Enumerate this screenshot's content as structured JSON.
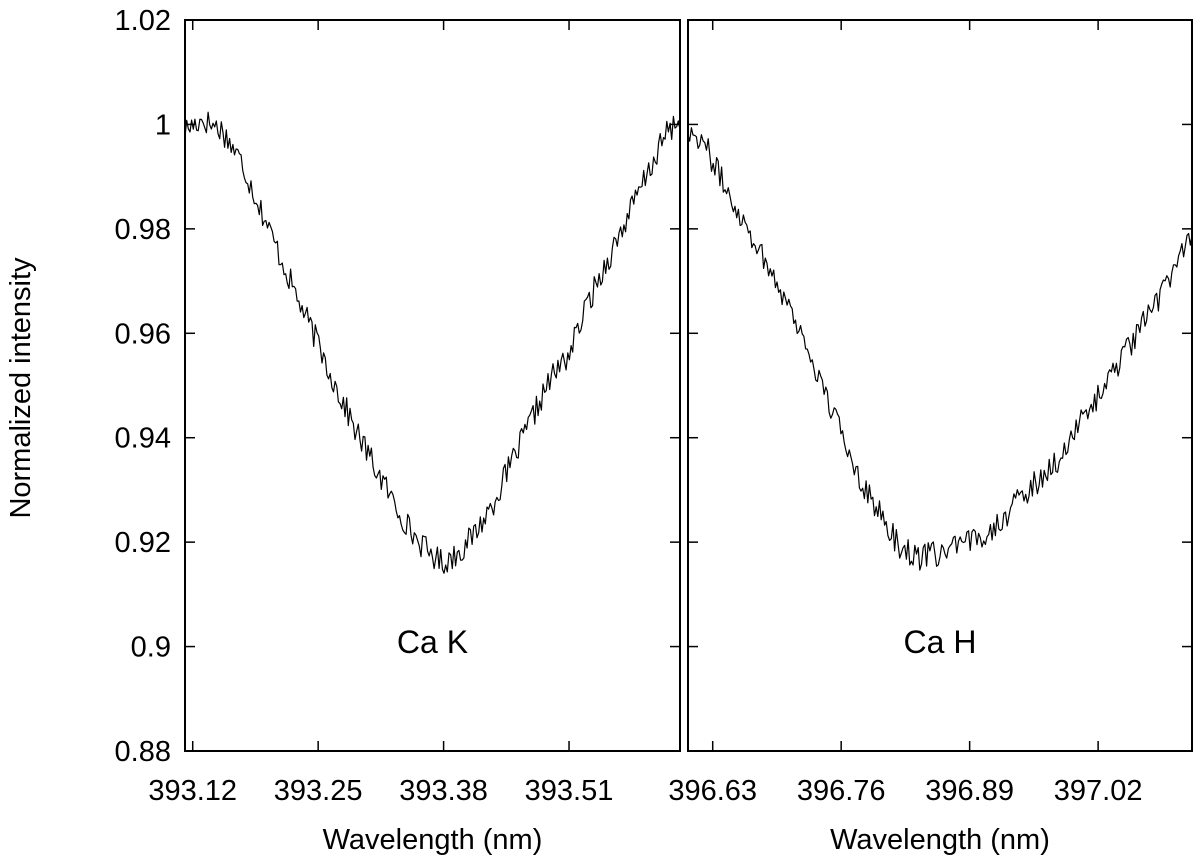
{
  "chart_data": {
    "type": "line",
    "ylabel": "Normalized intensity",
    "ylim": [
      0.88,
      1.02
    ],
    "yticks": [
      "0.88",
      "0.9",
      "0.92",
      "0.94",
      "0.96",
      "0.98",
      "1",
      "1.02"
    ],
    "y_tick_values": [
      0.88,
      0.9,
      0.92,
      0.94,
      0.96,
      0.98,
      1.0,
      1.02
    ],
    "grid": false,
    "line_color": "#000000",
    "panels": [
      {
        "xlabel": "Wavelength (nm)",
        "annotation": "Ca K",
        "xlim": [
          393.112,
          393.625
        ],
        "xticks": [
          "393.12",
          "393.25",
          "393.38",
          "393.51"
        ],
        "x_tick_values": [
          393.12,
          393.25,
          393.38,
          393.51
        ],
        "x": [
          393.112,
          393.13,
          393.15,
          393.17,
          393.19,
          393.21,
          393.23,
          393.25,
          393.27,
          393.29,
          393.31,
          393.33,
          393.35,
          393.365,
          393.38,
          393.395,
          393.41,
          393.43,
          393.45,
          393.47,
          393.49,
          393.51,
          393.53,
          393.55,
          393.57,
          393.59,
          393.61,
          393.625
        ],
        "y": [
          0.999,
          1.001,
          0.999,
          0.993,
          0.984,
          0.975,
          0.966,
          0.958,
          0.949,
          0.941,
          0.934,
          0.927,
          0.921,
          0.918,
          0.916,
          0.918,
          0.921,
          0.927,
          0.935,
          0.943,
          0.951,
          0.956,
          0.966,
          0.974,
          0.982,
          0.99,
          0.998,
          1.001
        ]
      },
      {
        "xlabel": "Wavelength (nm)",
        "annotation": "Ca H",
        "xlim": [
          396.605,
          397.115
        ],
        "xticks": [
          "396.63",
          "396.76",
          "396.89",
          "397.02"
        ],
        "x_tick_values": [
          396.63,
          396.76,
          396.89,
          397.02
        ],
        "x": [
          396.605,
          396.62,
          396.64,
          396.66,
          396.68,
          396.7,
          396.72,
          396.74,
          396.76,
          396.78,
          396.8,
          396.82,
          396.84,
          396.86,
          396.88,
          396.9,
          396.92,
          396.94,
          396.96,
          396.98,
          397.0,
          397.02,
          397.04,
          397.06,
          397.08,
          397.1,
          397.115
        ],
        "y": [
          0.999,
          0.997,
          0.989,
          0.982,
          0.975,
          0.968,
          0.96,
          0.95,
          0.941,
          0.932,
          0.925,
          0.919,
          0.917,
          0.918,
          0.919,
          0.921,
          0.924,
          0.928,
          0.932,
          0.936,
          0.942,
          0.948,
          0.954,
          0.96,
          0.966,
          0.974,
          0.98
        ]
      }
    ]
  }
}
